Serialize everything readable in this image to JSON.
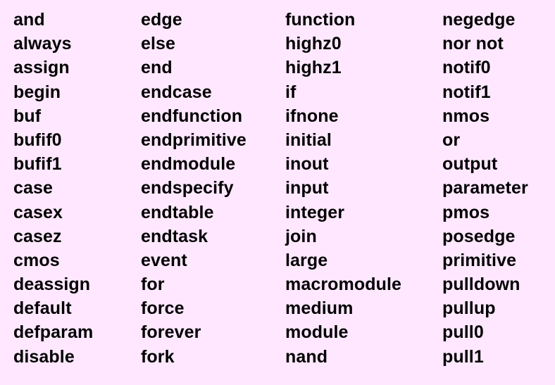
{
  "columns": [
    [
      "and",
      "always",
      "assign",
      "begin",
      "buf",
      "bufif0",
      "bufif1",
      "case",
      "casex",
      "casez",
      "cmos",
      "deassign",
      "default",
      "defparam",
      "disable"
    ],
    [
      "edge",
      "else",
      "end",
      "endcase",
      "endfunction",
      "endprimitive",
      "endmodule",
      "endspecify",
      "endtable",
      "endtask",
      "event",
      "for",
      "force",
      "forever",
      "fork"
    ],
    [
      "function",
      "highz0",
      "highz1",
      "if",
      "ifnone",
      "initial",
      "inout",
      "input",
      "integer",
      "join",
      "large",
      "macromodule",
      "medium",
      "module",
      "nand"
    ],
    [
      "negedge",
      "nor not",
      "notif0",
      "notif1",
      "nmos",
      "or",
      "output",
      "parameter",
      "pmos",
      "posedge",
      "primitive",
      "pulldown",
      "pullup",
      "pull0",
      "pull1"
    ]
  ],
  "colors": {
    "background": "#ffe8ff",
    "text": "#000000"
  }
}
